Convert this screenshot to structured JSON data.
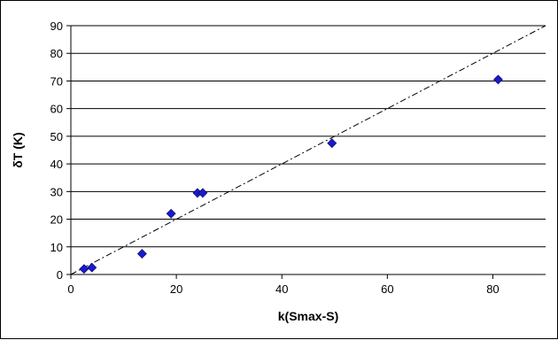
{
  "chart_data": {
    "type": "scatter",
    "title": "",
    "xlabel": "k(Smax-S)",
    "ylabel": "δT (K)",
    "xlim": [
      0,
      90
    ],
    "ylim": [
      0,
      90
    ],
    "xticks": [
      0,
      20,
      40,
      60,
      80
    ],
    "yticks": [
      0,
      10,
      20,
      30,
      40,
      50,
      60,
      70,
      80,
      90
    ],
    "grid": "horizontal",
    "legend": "none",
    "series": [
      {
        "marker": "diamond",
        "color": "#1a1acc",
        "points": [
          {
            "x": 2.5,
            "y": 2
          },
          {
            "x": 4,
            "y": 2.5
          },
          {
            "x": 13.5,
            "y": 7.5
          },
          {
            "x": 19,
            "y": 22
          },
          {
            "x": 24,
            "y": 29.5
          },
          {
            "x": 25,
            "y": 29.5
          },
          {
            "x": 49.5,
            "y": 47.5
          },
          {
            "x": 81,
            "y": 70.5
          }
        ]
      }
    ],
    "reference_line": {
      "style": "dash-dot",
      "color": "#000000",
      "from": [
        0,
        0
      ],
      "to": [
        90,
        90
      ]
    }
  }
}
